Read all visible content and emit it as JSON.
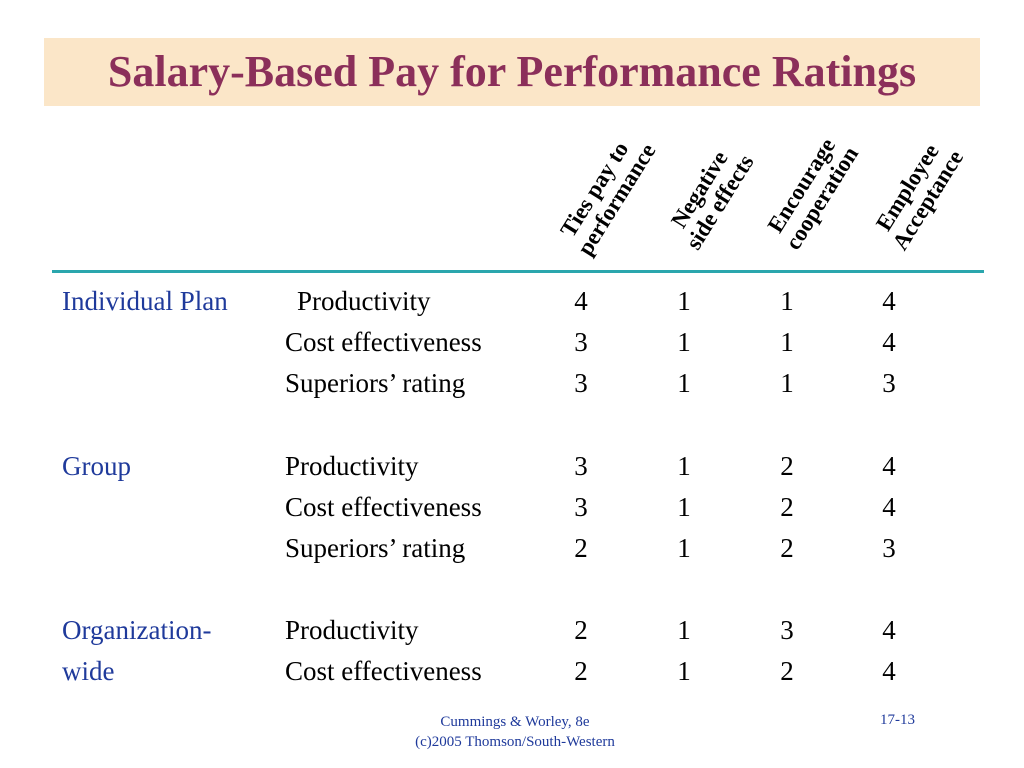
{
  "slide": {
    "title": "Salary-Based Pay for Performance Ratings",
    "columns": [
      {
        "line1": "Ties pay to",
        "line2": "performance"
      },
      {
        "line1": "Negative",
        "line2": "side effects"
      },
      {
        "line1": "Encourage",
        "line2": "cooperation"
      },
      {
        "line1": "Employee",
        "line2": "Acceptance"
      }
    ],
    "groups": [
      {
        "label_line1": "Individual Plan",
        "label_line2": "",
        "rows": [
          {
            "criterion": "Productivity",
            "ratings": [
              "4",
              "1",
              "1",
              "4"
            ]
          },
          {
            "criterion": "Cost effectiveness",
            "ratings": [
              "3",
              "1",
              "1",
              "4"
            ]
          },
          {
            "criterion": "Superiors’ rating",
            "ratings": [
              "3",
              "1",
              "1",
              "3"
            ]
          }
        ]
      },
      {
        "label_line1": "Group",
        "label_line2": "",
        "rows": [
          {
            "criterion": "Productivity",
            "ratings": [
              "3",
              "1",
              "2",
              "4"
            ]
          },
          {
            "criterion": "Cost effectiveness",
            "ratings": [
              "3",
              "1",
              "2",
              "4"
            ]
          },
          {
            "criterion": "Superiors’ rating",
            "ratings": [
              "2",
              "1",
              "2",
              "3"
            ]
          }
        ]
      },
      {
        "label_line1": "Organization-",
        "label_line2": "wide",
        "rows": [
          {
            "criterion": "Productivity",
            "ratings": [
              "2",
              "1",
              "3",
              "4"
            ]
          },
          {
            "criterion": "Cost effectiveness",
            "ratings": [
              "2",
              "1",
              "2",
              "4"
            ]
          }
        ]
      }
    ],
    "footer": {
      "line1": "Cummings & Worley, 8e",
      "line2": "(c)2005 Thomson/South-Western",
      "page": "17-13"
    },
    "colors": {
      "title": "#8b2f5a",
      "title_bg": "#fbe6c8",
      "label": "#1f3a9b",
      "rule": "#2aa6ad"
    }
  }
}
